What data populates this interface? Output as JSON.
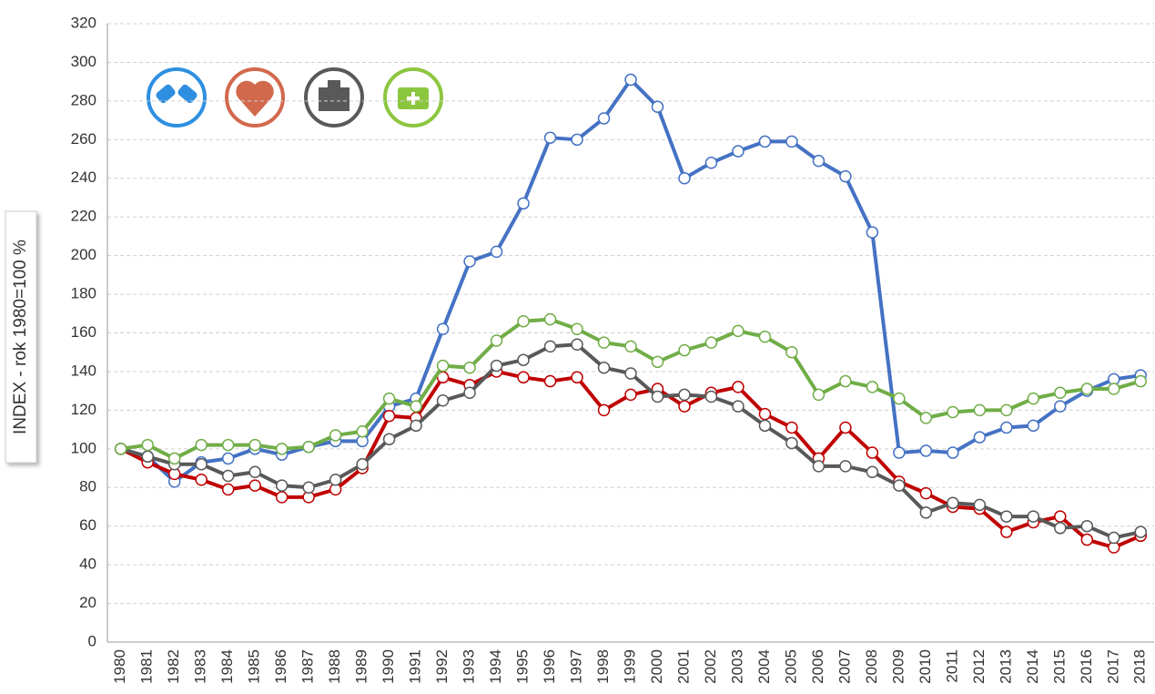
{
  "chart_data": {
    "type": "line",
    "y_label": "INDEX - rok 1980=100 %",
    "categories": [
      "1980",
      "1981",
      "1982",
      "1983",
      "1984",
      "1985",
      "1986",
      "1987",
      "1988",
      "1989",
      "1990",
      "1991",
      "1992",
      "1993",
      "1994",
      "1995",
      "1996",
      "1997",
      "1998",
      "1999",
      "2000",
      "2001",
      "2002",
      "2003",
      "2004",
      "2005",
      "2006",
      "2007",
      "2008",
      "2009",
      "2010",
      "2011",
      "2012",
      "2013",
      "2014",
      "2015",
      "2016",
      "2017",
      "2018"
    ],
    "series": [
      {
        "color": "#4472c4",
        "values": [
          100,
          96,
          83,
          93,
          95,
          100,
          97,
          101,
          104,
          104,
          122,
          126,
          162,
          197,
          202,
          227,
          261,
          260,
          271,
          291,
          277,
          240,
          248,
          254,
          259,
          259,
          249,
          241,
          212,
          98,
          99,
          98,
          106,
          111,
          112,
          122,
          130,
          136,
          138
        ]
      },
      {
        "color": "#c00000",
        "values": [
          100,
          93,
          87,
          84,
          79,
          81,
          75,
          75,
          79,
          90,
          117,
          116,
          137,
          133,
          140,
          137,
          135,
          137,
          120,
          128,
          131,
          122,
          129,
          132,
          118,
          111,
          95,
          111,
          98,
          83,
          77,
          70,
          69,
          57,
          62,
          65,
          53,
          49,
          55
        ]
      },
      {
        "color": "#595959",
        "values": [
          100,
          96,
          92,
          92,
          86,
          88,
          81,
          80,
          84,
          92,
          105,
          112,
          125,
          129,
          143,
          146,
          153,
          154,
          142,
          139,
          127,
          128,
          127,
          122,
          112,
          103,
          91,
          91,
          88,
          81,
          67,
          72,
          71,
          65,
          65,
          59,
          60,
          54,
          57
        ]
      },
      {
        "color": "#70ad47",
        "values": [
          100,
          102,
          95,
          102,
          102,
          102,
          100,
          101,
          107,
          109,
          126,
          122,
          143,
          142,
          156,
          166,
          167,
          162,
          155,
          153,
          145,
          151,
          155,
          161,
          158,
          150,
          128,
          135,
          132,
          126,
          116,
          119,
          120,
          120,
          126,
          129,
          131,
          131,
          135
        ]
      }
    ],
    "ylim": [
      0,
      320
    ],
    "yticks": [
      0,
      20,
      40,
      60,
      80,
      100,
      120,
      140,
      160,
      180,
      200,
      220,
      240,
      260,
      280,
      300,
      320
    ],
    "grid": true
  }
}
